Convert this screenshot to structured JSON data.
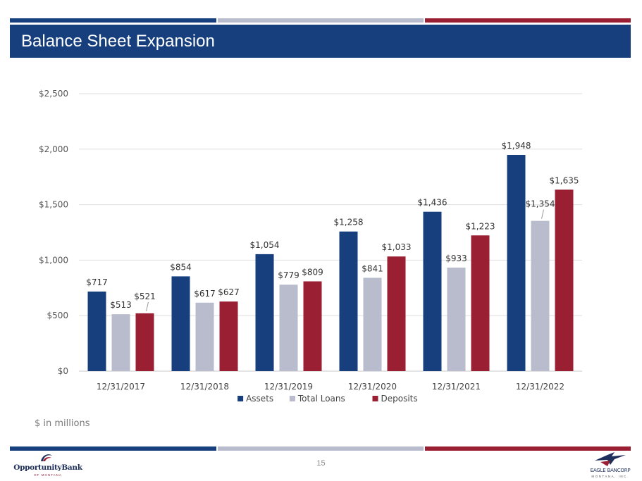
{
  "slide": {
    "title": "Balance Sheet Expansion",
    "note": "$ in millions",
    "page_number": "15"
  },
  "logos": {
    "left": {
      "name": "OpportunityBank",
      "sub": "OF MONTANA"
    },
    "right": {
      "name": "EAGLE BANCORP",
      "sub": "MONTANA, INC."
    }
  },
  "colors": {
    "navy": "#173f7e",
    "grey": "#b9bccc",
    "maroon": "#9a1f33"
  },
  "chart_data": {
    "type": "bar",
    "title": "",
    "xlabel": "",
    "ylabel": "",
    "ylim": [
      0,
      2500
    ],
    "yticks": [
      0,
      500,
      1000,
      1500,
      2000,
      2500
    ],
    "ytick_labels": [
      "$0",
      "$500",
      "$1,000",
      "$1,500",
      "$2,000",
      "$2,500"
    ],
    "grid": true,
    "legend_position": "bottom",
    "categories": [
      "12/31/2017",
      "12/31/2018",
      "12/31/2019",
      "12/31/2020",
      "12/31/2021",
      "12/31/2022"
    ],
    "series": [
      {
        "name": "Assets",
        "color": "#173f7e",
        "values": [
          717,
          854,
          1054,
          1258,
          1436,
          1948
        ],
        "labels": [
          "$717",
          "$854",
          "$1,054",
          "$1,258",
          "$1,436",
          "$1,948"
        ]
      },
      {
        "name": "Total  Loans",
        "color": "#b9bccc",
        "values": [
          513,
          617,
          779,
          841,
          933,
          1354
        ],
        "labels": [
          "$513",
          "$617",
          "$779",
          "$841",
          "$933",
          "$1,354"
        ]
      },
      {
        "name": "Deposits",
        "color": "#9a1f33",
        "values": [
          521,
          627,
          809,
          1033,
          1223,
          1635
        ],
        "labels": [
          "$521",
          "$627",
          "$809",
          "$1,033",
          "$1,223",
          "$1,635"
        ]
      }
    ]
  }
}
